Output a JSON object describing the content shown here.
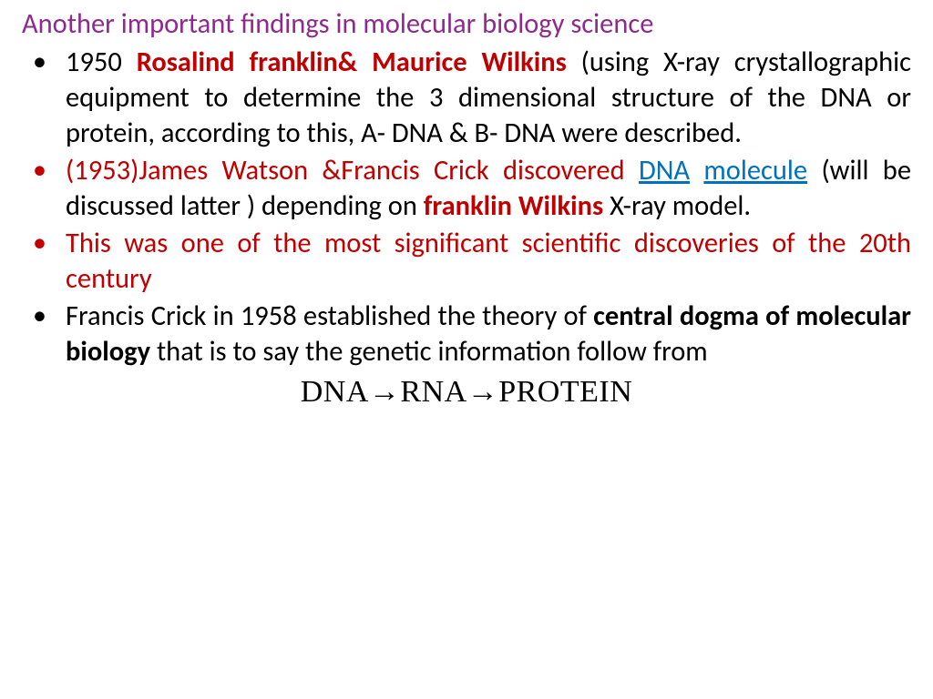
{
  "title": {
    "text": "Another  important findings in molecular biology science",
    "color": "#8e2a8e",
    "fontsize": 30.5
  },
  "bullets": [
    {
      "bullet_color": "#000000",
      "segments": [
        {
          "text": "1950  ",
          "color": "#000000",
          "bold": false
        },
        {
          "text": "Rosalind franklin& Maurice Wilkins ",
          "color": "#c00000",
          "bold": true
        },
        {
          "text": "(using X-ray crystallographic equipment to determine the 3 dimensional structure of the DNA or protein, according to this,  A- DNA &   B- DNA were described.",
          "color": "#000000",
          "bold": false
        }
      ]
    },
    {
      "bullet_color": "#c00000",
      "segments": [
        {
          "text": " (1953)James Watson &Francis Crick discovered",
          "color": "#c00000",
          "bold": false
        },
        {
          "text": "  ",
          "color": "#000000",
          "bold": false
        },
        {
          "text": "DNA",
          "color": "#0070c0",
          "bold": false,
          "link": true
        },
        {
          "text": " ",
          "color": "#000000",
          "bold": false
        },
        {
          "text": "molecule",
          "color": "#0070c0",
          "bold": false,
          "link": true
        },
        {
          "text": " (will be discussed latter ) depending on ",
          "color": "#000000",
          "bold": false
        },
        {
          "text": "franklin Wilkins ",
          "color": "#c00000",
          "bold": true
        },
        {
          "text": "X-ray model.",
          "color": "#000000",
          "bold": false
        }
      ]
    },
    {
      "bullet_color": "#c00000",
      "segments": [
        {
          "text": "This was one of the most significant scientific discoveries of the 20th century",
          "color": "#c00000",
          "bold": false
        }
      ]
    },
    {
      "bullet_color": "#000000",
      "segments": [
        {
          "text": "Francis Crick in 1958 established the theory of  ",
          "color": "#000000",
          "bold": false
        },
        {
          "text": "central dogma of molecular biology  ",
          "color": "#000000",
          "bold": true
        },
        {
          "text": "that is to say the genetic information follow from",
          "color": "#000000",
          "bold": false
        }
      ]
    }
  ],
  "central_dogma": "DNA→RNA→PROTEIN",
  "colors": {
    "title": "#8e2a8e",
    "darkred": "#c00000",
    "link": "#0070c0",
    "black": "#000000",
    "background": "#ffffff"
  }
}
